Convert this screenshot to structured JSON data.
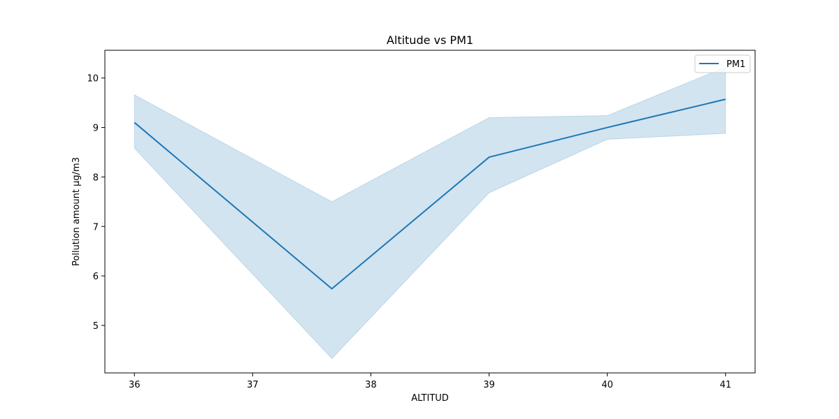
{
  "chart_data": {
    "type": "line",
    "title": "Altitude vs PM1",
    "xlabel": "ALTITUD",
    "ylabel": "Pollution amount μg/m3",
    "xlim": [
      35.75,
      41.25
    ],
    "ylim": [
      4.04,
      10.56
    ],
    "xticks": [
      36,
      37,
      38,
      39,
      40,
      41
    ],
    "yticks": [
      5,
      6,
      7,
      8,
      9,
      10
    ],
    "grid": false,
    "legend_position": "top-right",
    "series": [
      {
        "name": "PM1",
        "color": "#1f77b4",
        "x": [
          36,
          37.67,
          39,
          40,
          41
        ],
        "y": [
          9.1,
          5.74,
          8.4,
          9.0,
          9.57
        ],
        "ci_lower": [
          8.58,
          4.33,
          7.68,
          8.76,
          8.88
        ],
        "ci_upper": [
          9.66,
          7.5,
          9.2,
          9.24,
          10.22
        ]
      }
    ]
  }
}
